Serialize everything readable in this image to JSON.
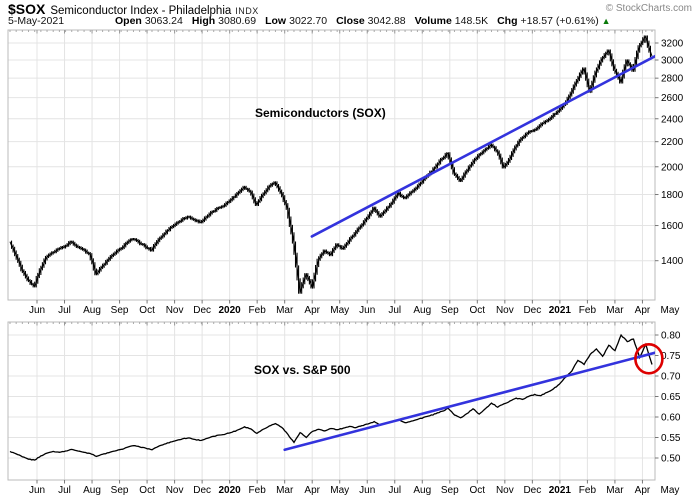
{
  "header": {
    "symbol": "$SOX",
    "name": "Semiconductor Index - Philadelphia",
    "exchange": "INDX",
    "copyright": "© StockCharts.com",
    "date": "5-May-2021",
    "quote": [
      {
        "label": "Open",
        "value": "3063.24"
      },
      {
        "label": "High",
        "value": "3080.69"
      },
      {
        "label": "Low",
        "value": "3022.70"
      },
      {
        "label": "Close",
        "value": "3042.88"
      },
      {
        "label": "Volume",
        "value": "148.5K"
      },
      {
        "label": "Chg",
        "value": "+18.57 (+0.61%)"
      }
    ],
    "change_direction": "up",
    "arrow_glyph": "▲"
  },
  "colors": {
    "price": "#000000",
    "trendline": "#3333dd",
    "highlight": "#dd0000",
    "grid": "#e4e4e4",
    "axis": "#999999",
    "up_arrow": "#0a7a0a"
  },
  "chart_data": [
    {
      "type": "line",
      "style": "ohlc_bars",
      "title": "Semiconductors (SOX)",
      "scale": "log",
      "frequency": "weekly",
      "x_range": "May-2019 to 5-May-2021",
      "x_ticks": [
        "Jun",
        "Jul",
        "Aug",
        "Sep",
        "Oct",
        "Nov",
        "Dec",
        "2020",
        "Feb",
        "Mar",
        "Apr",
        "May",
        "Jun",
        "Jul",
        "Aug",
        "Sep",
        "Oct",
        "Nov",
        "Dec",
        "2021",
        "Feb",
        "Mar",
        "Apr",
        "May"
      ],
      "y_ticks": [
        "3200",
        "3000",
        "2800",
        "2600",
        "2400",
        "2200",
        "2000",
        "1800",
        "1600",
        "1400"
      ],
      "ylim": [
        1200,
        3400
      ],
      "grid": true,
      "values": [
        1505,
        1430,
        1350,
        1300,
        1270,
        1355,
        1420,
        1445,
        1465,
        1480,
        1505,
        1475,
        1460,
        1435,
        1330,
        1368,
        1405,
        1438,
        1465,
        1498,
        1520,
        1500,
        1478,
        1455,
        1508,
        1548,
        1585,
        1612,
        1638,
        1655,
        1635,
        1620,
        1655,
        1688,
        1712,
        1735,
        1768,
        1810,
        1853,
        1820,
        1730,
        1798,
        1855,
        1885,
        1810,
        1705,
        1500,
        1240,
        1330,
        1265,
        1405,
        1455,
        1430,
        1490,
        1465,
        1510,
        1555,
        1600,
        1648,
        1712,
        1655,
        1698,
        1745,
        1812,
        1775,
        1815,
        1848,
        1902,
        1945,
        1995,
        2060,
        2105,
        1950,
        1895,
        1965,
        2030,
        2090,
        2130,
        2175,
        2120,
        1995,
        2060,
        2160,
        2230,
        2275,
        2300,
        2342,
        2378,
        2425,
        2475,
        2540,
        2650,
        2780,
        2905,
        2660,
        2870,
        3020,
        3110,
        2890,
        2755,
        2995,
        2880,
        3160,
        3280,
        3043
      ],
      "trendline": {
        "from_index": 48.9,
        "from_value": 1535,
        "to_index": 104.8,
        "to_value": 3055
      }
    },
    {
      "type": "line",
      "style": "line",
      "title": "SOX vs. S&P 500",
      "scale": "linear",
      "frequency": "weekly",
      "x_range": "May-2019 to 5-May-2021",
      "x_ticks": [
        "Jun",
        "Jul",
        "Aug",
        "Sep",
        "Oct",
        "Nov",
        "Dec",
        "2020",
        "Feb",
        "Mar",
        "Apr",
        "May",
        "Jun",
        "Jul",
        "Aug",
        "Sep",
        "Oct",
        "Nov",
        "Dec",
        "2021",
        "Feb",
        "Mar",
        "Apr",
        "May"
      ],
      "y_ticks": [
        "0.80",
        "0.75",
        "0.70",
        "0.65",
        "0.60",
        "0.55",
        "0.50"
      ],
      "ylim": [
        0.47,
        0.82
      ],
      "grid": true,
      "values": [
        0.516,
        0.51,
        0.503,
        0.497,
        0.495,
        0.505,
        0.512,
        0.516,
        0.514,
        0.517,
        0.521,
        0.517,
        0.514,
        0.511,
        0.504,
        0.509,
        0.513,
        0.517,
        0.521,
        0.526,
        0.53,
        0.527,
        0.524,
        0.52,
        0.528,
        0.534,
        0.539,
        0.543,
        0.547,
        0.549,
        0.545,
        0.543,
        0.548,
        0.553,
        0.556,
        0.559,
        0.563,
        0.569,
        0.576,
        0.571,
        0.56,
        0.57,
        0.578,
        0.584,
        0.575,
        0.558,
        0.538,
        0.562,
        0.55,
        0.565,
        0.57,
        0.566,
        0.572,
        0.569,
        0.573,
        0.577,
        0.574,
        0.579,
        0.583,
        0.589,
        0.58,
        0.585,
        0.589,
        0.594,
        0.586,
        0.59,
        0.594,
        0.599,
        0.603,
        0.608,
        0.614,
        0.621,
        0.605,
        0.598,
        0.608,
        0.62,
        0.607,
        0.62,
        0.634,
        0.624,
        0.632,
        0.639,
        0.646,
        0.643,
        0.65,
        0.655,
        0.652,
        0.66,
        0.668,
        0.68,
        0.697,
        0.712,
        0.738,
        0.728,
        0.753,
        0.766,
        0.748,
        0.775,
        0.762,
        0.8,
        0.784,
        0.79,
        0.745,
        0.777,
        0.728
      ],
      "trendline": {
        "from_index": 44.5,
        "from_value": 0.52,
        "to_index": 104.8,
        "to_value": 0.758
      },
      "highlight_circle": {
        "index": 103.5,
        "value": 0.742
      }
    }
  ]
}
